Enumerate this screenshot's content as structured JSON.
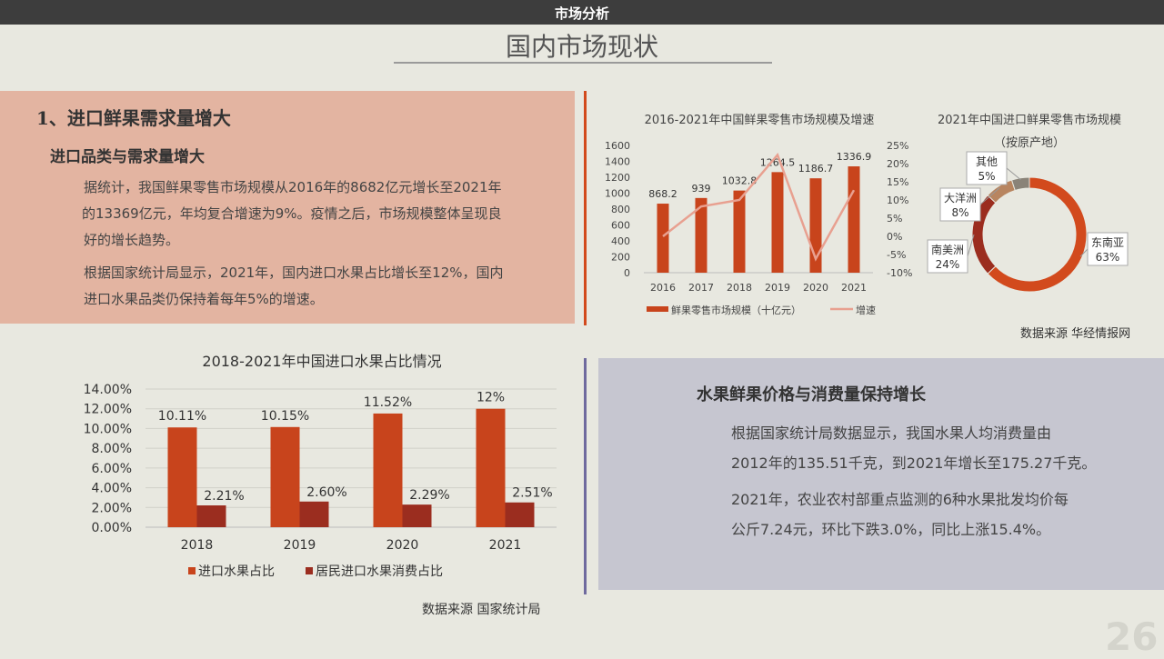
{
  "header": {
    "section": "市场分析",
    "title": "国内市场现状"
  },
  "left_panel": {
    "h1": "1、进口鲜果需求量增大",
    "h2": "进口品类与需求量增大",
    "para1_lines": [
      "据统计，我国鲜果零售市场规模从2016年的8682亿元增长至2021年",
      "的13369亿元，年均复合增速为9%。疫情之后，市场规模整体呈现良",
      "好的增长趋势。"
    ],
    "para2_lines": [
      "根据国家统计局显示，2021年，国内进口水果占比增长至12%，国内",
      "进口水果品类仍保持着每年5%的增速。"
    ]
  },
  "right_panel": {
    "h2": "水果鲜果价格与消费量保持增长",
    "para1_lines": [
      "根据国家统计局数据显示，我国水果人均消费量由",
      "2012年的135.51千克，到2021年增长至175.27千克。"
    ],
    "para2_lines": [
      "2021年，农业农村部重点监测的6种水果批发均价每",
      "公斤7.24元，环比下跌3.0%，同比上涨15.4%。"
    ]
  },
  "sources": {
    "top": "数据来源 华经情报网",
    "bottom": "数据来源 国家统计局"
  },
  "page_number": "26",
  "colors": {
    "bar": "#c8441c",
    "bar_dark": "#9b2d1f",
    "line": "#e8a090",
    "donut1": "#d24a1d",
    "donut2": "#9b2d1f",
    "donut3": "#b88560",
    "donut4": "#8a8378"
  },
  "chart_data": [
    {
      "type": "bar+line",
      "title": "2016-2021年中国鲜果零售市场规模及增速",
      "categories": [
        "2016",
        "2017",
        "2018",
        "2019",
        "2020",
        "2021"
      ],
      "series": [
        {
          "name": "鲜果零售市场规模（十亿元）",
          "type": "bar",
          "values": [
            868.2,
            939,
            1032.8,
            1264.5,
            1186.7,
            1336.9
          ],
          "labels": [
            "868.2",
            "939",
            "1032.8",
            "1264.5",
            "1186.7",
            "1336.9"
          ]
        },
        {
          "name": "增速",
          "type": "line",
          "axis": "right",
          "values": [
            0,
            8.2,
            10,
            22.4,
            -6.2,
            12.7
          ]
        }
      ],
      "ylim": [
        0,
        1600
      ],
      "yticks": [
        "1600",
        "1400",
        "1200",
        "1000",
        "800",
        "600",
        "400",
        "200",
        "0"
      ],
      "y2lim": [
        -10,
        25
      ],
      "y2ticks": [
        "25%",
        "20%",
        "15%",
        "10%",
        "5%",
        "0%",
        "-5%",
        "-10%"
      ],
      "legend": "bottom"
    },
    {
      "type": "pie",
      "title": "2021年中国进口鲜果零售市场规模",
      "subtitle": "（按原产地）",
      "slices": [
        {
          "name": "东南亚",
          "value": 63,
          "label": "63%"
        },
        {
          "name": "南美洲",
          "value": 24,
          "label": "24%"
        },
        {
          "name": "大洋洲",
          "value": 8,
          "label": "8%"
        },
        {
          "name": "其他",
          "value": 5,
          "label": "5%"
        }
      ]
    },
    {
      "type": "bar",
      "title": "2018-2021年中国进口水果占比情况",
      "categories": [
        "2018",
        "2019",
        "2020",
        "2021"
      ],
      "series": [
        {
          "name": "进口水果占比",
          "values": [
            10.11,
            10.15,
            11.52,
            12
          ],
          "labels": [
            "10.11%",
            "10.15%",
            "11.52%",
            "12%"
          ]
        },
        {
          "name": "居民进口水果消费占比",
          "values": [
            2.21,
            2.6,
            2.29,
            2.51
          ],
          "labels": [
            "2.21%",
            "2.60%",
            "2.29%",
            "2.51%"
          ]
        }
      ],
      "ylim": [
        0,
        14
      ],
      "yticks": [
        "14.00%",
        "12.00%",
        "10.00%",
        "8.00%",
        "6.00%",
        "4.00%",
        "2.00%",
        "0.00%"
      ],
      "legend": "bottom",
      "grid": true
    }
  ]
}
